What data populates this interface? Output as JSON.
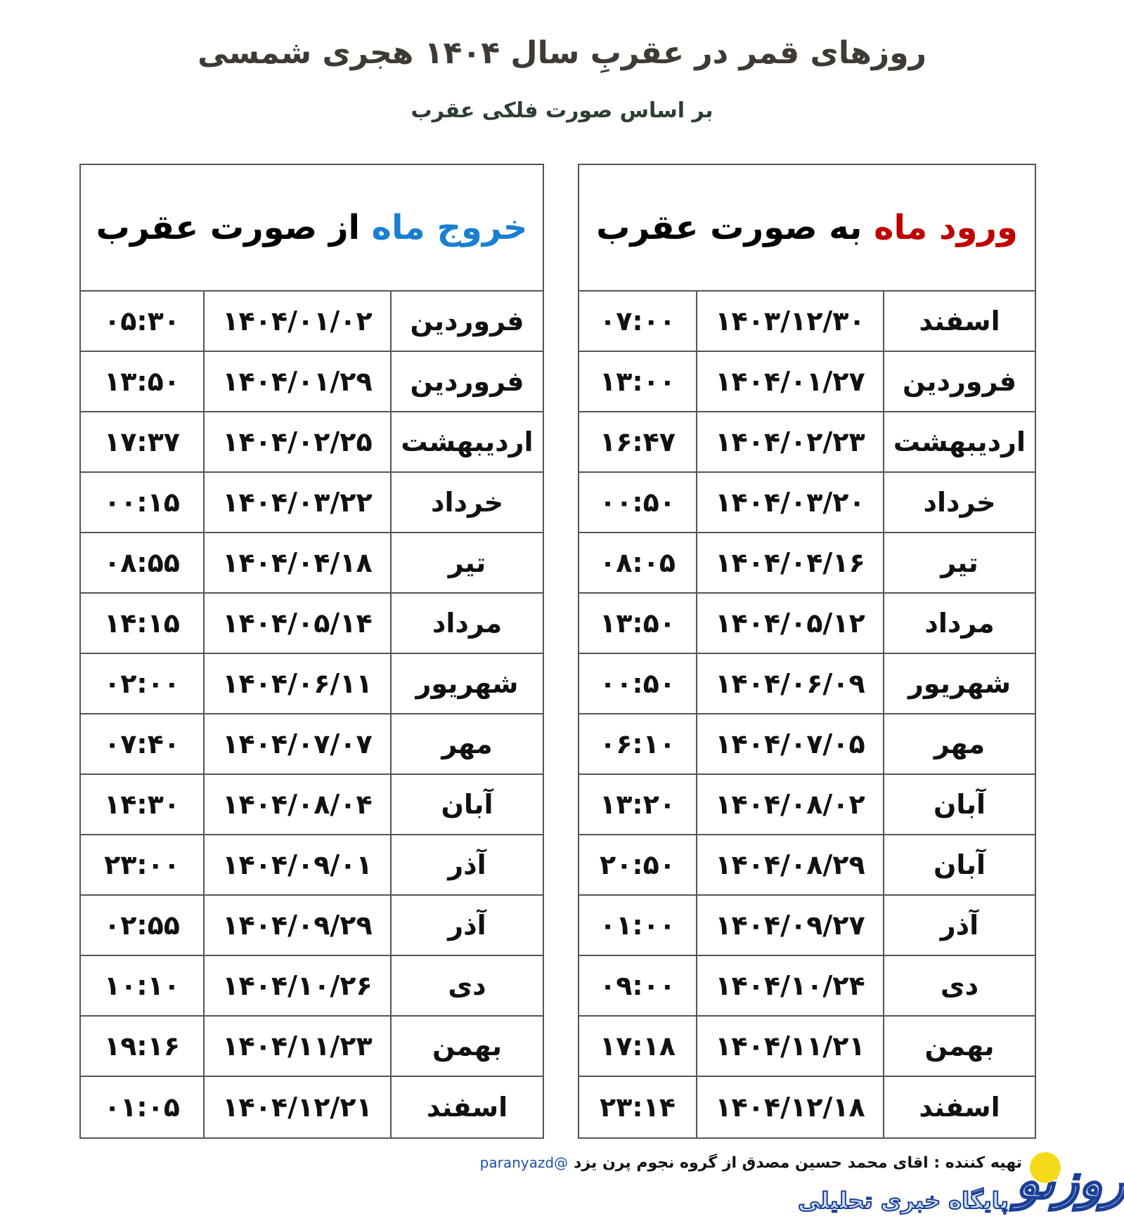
{
  "title": "روزهای قمر در عقربِ سال ۱۴۰۴ هجری شمسی",
  "subtitle": "بر اساس صورت فلکی عقرب",
  "entry_table": {
    "header_highlight": "ورود ماه",
    "header_rest": "به صورت عقرب",
    "highlight_color": "#c00000",
    "rows": [
      {
        "month": "اسفند",
        "date": "۱۴۰۳/۱۲/۳۰",
        "time": "۰۷:۰۰"
      },
      {
        "month": "فروردین",
        "date": "۱۴۰۴/۰۱/۲۷",
        "time": "۱۳:۰۰"
      },
      {
        "month": "اردیبهشت",
        "date": "۱۴۰۴/۰۲/۲۳",
        "time": "۱۶:۴۷"
      },
      {
        "month": "خرداد",
        "date": "۱۴۰۴/۰۳/۲۰",
        "time": "۰۰:۵۰"
      },
      {
        "month": "تیر",
        "date": "۱۴۰۴/۰۴/۱۶",
        "time": "۰۸:۰۵"
      },
      {
        "month": "مرداد",
        "date": "۱۴۰۴/۰۵/۱۲",
        "time": "۱۳:۵۰"
      },
      {
        "month": "شهریور",
        "date": "۱۴۰۴/۰۶/۰۹",
        "time": "۰۰:۵۰"
      },
      {
        "month": "مهر",
        "date": "۱۴۰۴/۰۷/۰۵",
        "time": "۰۶:۱۰"
      },
      {
        "month": "آبان",
        "date": "۱۴۰۴/۰۸/۰۲",
        "time": "۱۳:۲۰"
      },
      {
        "month": "آبان",
        "date": "۱۴۰۴/۰۸/۲۹",
        "time": "۲۰:۵۰"
      },
      {
        "month": "آذر",
        "date": "۱۴۰۴/۰۹/۲۷",
        "time": "۰۱:۰۰"
      },
      {
        "month": "دی",
        "date": "۱۴۰۴/۱۰/۲۴",
        "time": "۰۹:۰۰"
      },
      {
        "month": "بهمن",
        "date": "۱۴۰۴/۱۱/۲۱",
        "time": "۱۷:۱۸"
      },
      {
        "month": "اسفند",
        "date": "۱۴۰۴/۱۲/۱۸",
        "time": "۲۳:۱۴"
      }
    ]
  },
  "exit_table": {
    "header_highlight": "خروج ماه",
    "header_rest": "از صورت عقرب",
    "highlight_color": "#1a7fd0",
    "rows": [
      {
        "month": "فروردین",
        "date": "۱۴۰۴/۰۱/۰۲",
        "time": "۰۵:۳۰"
      },
      {
        "month": "فروردین",
        "date": "۱۴۰۴/۰۱/۲۹",
        "time": "۱۳:۵۰"
      },
      {
        "month": "اردیبهشت",
        "date": "۱۴۰۴/۰۲/۲۵",
        "time": "۱۷:۳۷"
      },
      {
        "month": "خرداد",
        "date": "۱۴۰۴/۰۳/۲۲",
        "time": "۰۰:۱۵"
      },
      {
        "month": "تیر",
        "date": "۱۴۰۴/۰۴/۱۸",
        "time": "۰۸:۵۵"
      },
      {
        "month": "مرداد",
        "date": "۱۴۰۴/۰۵/۱۴",
        "time": "۱۴:۱۵"
      },
      {
        "month": "شهریور",
        "date": "۱۴۰۴/۰۶/۱۱",
        "time": "۰۲:۰۰"
      },
      {
        "month": "مهر",
        "date": "۱۴۰۴/۰۷/۰۷",
        "time": "۰۷:۴۰"
      },
      {
        "month": "آبان",
        "date": "۱۴۰۴/۰۸/۰۴",
        "time": "۱۴:۳۰"
      },
      {
        "month": "آذر",
        "date": "۱۴۰۴/۰۹/۰۱",
        "time": "۲۳:۰۰"
      },
      {
        "month": "آذر",
        "date": "۱۴۰۴/۰۹/۲۹",
        "time": "۰۲:۵۵"
      },
      {
        "month": "دی",
        "date": "۱۴۰۴/۱۰/۲۶",
        "time": "۱۰:۱۰"
      },
      {
        "month": "بهمن",
        "date": "۱۴۰۴/۱۱/۲۳",
        "time": "۱۹:۱۶"
      },
      {
        "month": "اسفند",
        "date": "۱۴۰۴/۱۲/۲۱",
        "time": "۰۱:۰۵"
      }
    ]
  },
  "credit": {
    "text": "تهیه کننده :  اقای محمد حسین مصدق از گروه نجوم پرن یزد",
    "handle": "@paranyazd"
  },
  "logo": {
    "mark": "روزنو",
    "tagline": "پایگاه خبری تحلیلی"
  }
}
